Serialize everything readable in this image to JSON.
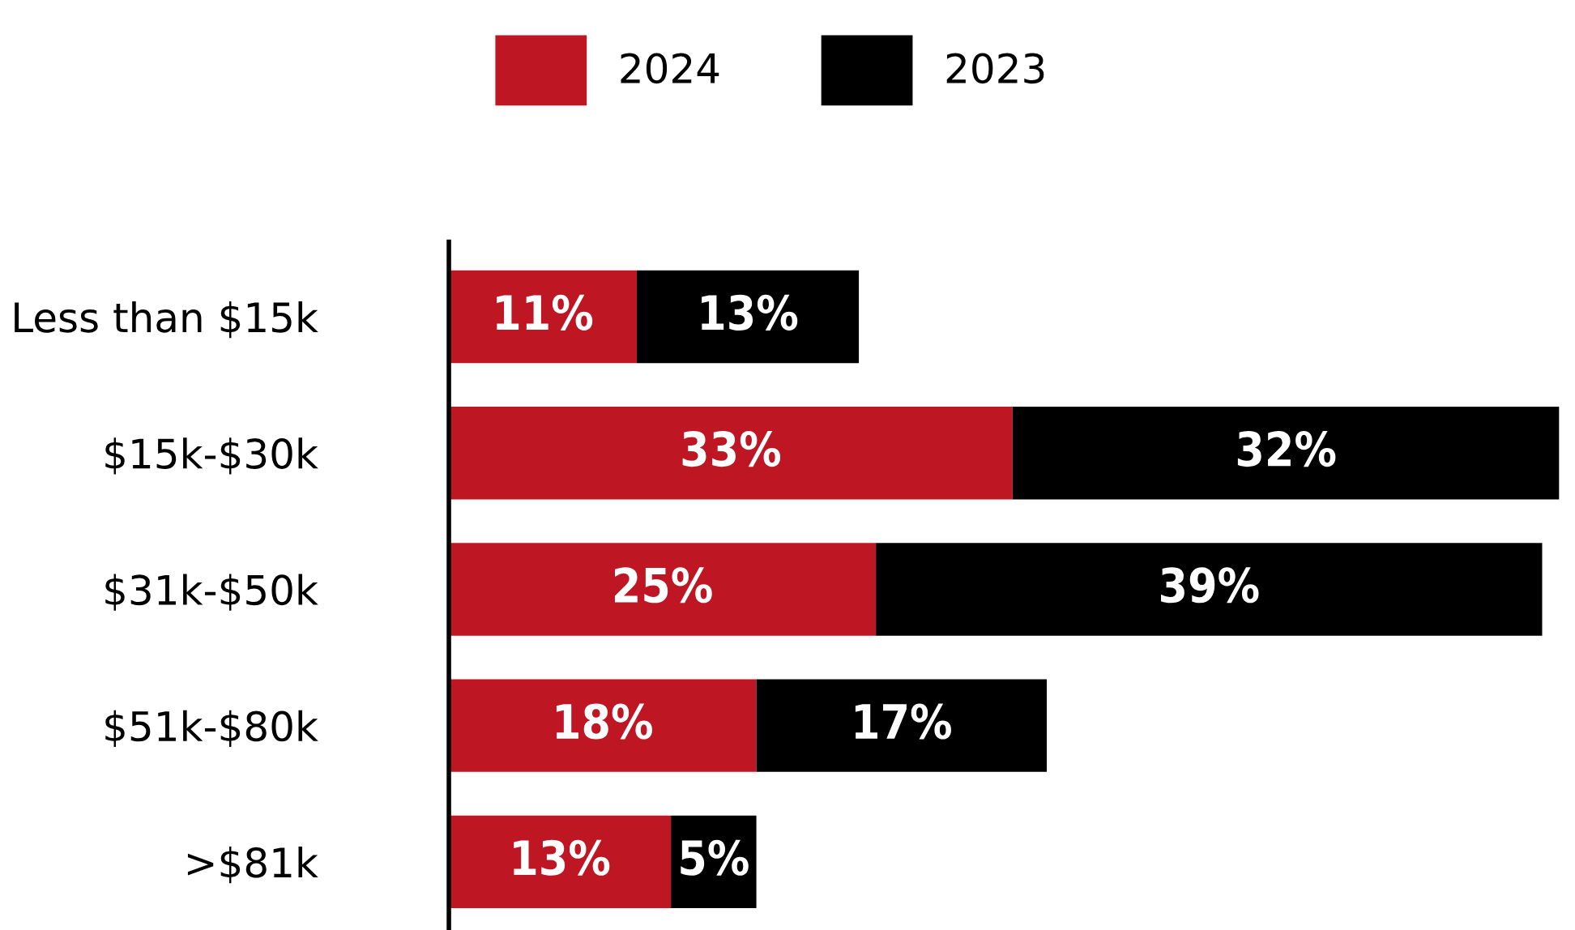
{
  "chart_data": {
    "type": "bar",
    "orientation": "horizontal",
    "stacked": true,
    "categories": [
      "Less than $15k",
      "$15k-$30k",
      "$31k-$50k",
      "$51k-$80k",
      ">$81k"
    ],
    "series": [
      {
        "name": "2024",
        "color": "#be1622",
        "values": [
          11,
          33,
          25,
          18,
          13
        ],
        "value_labels": [
          "11%",
          "33%",
          "25%",
          "18%",
          "13%"
        ]
      },
      {
        "name": "2023",
        "color": "#000000",
        "values": [
          13,
          32,
          39,
          17,
          5
        ],
        "value_labels": [
          "13%",
          "32%",
          "39%",
          "17%",
          "5%"
        ]
      }
    ],
    "legend": "top",
    "grid": false,
    "tick_labels": "y"
  }
}
